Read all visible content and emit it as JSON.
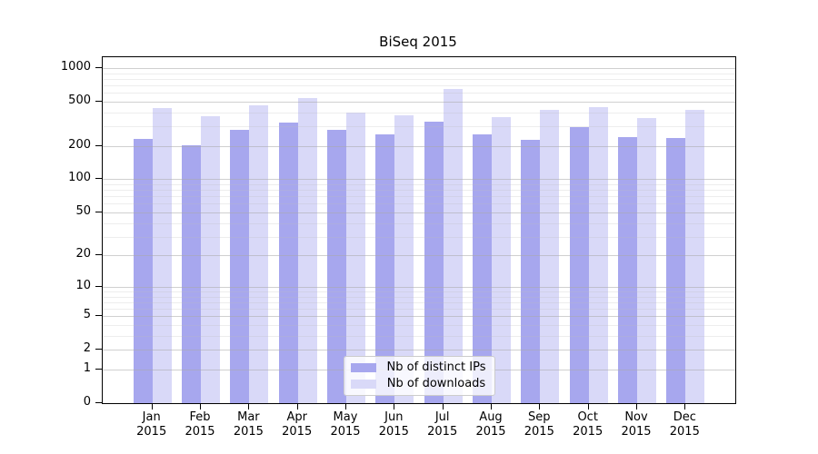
{
  "figure": {
    "title": "BiSeq 2015",
    "background": "#ffffff"
  },
  "chart_data": {
    "type": "bar",
    "title": "BiSeq 2015",
    "categories": [
      "Jan 2015",
      "Feb 2015",
      "Mar 2015",
      "Apr 2015",
      "May 2015",
      "Jun 2015",
      "Jul 2015",
      "Aug 2015",
      "Sep 2015",
      "Oct 2015",
      "Nov 2015",
      "Dec 2015"
    ],
    "series": [
      {
        "name": "Nb of distinct IPs",
        "color": "#a7a7ee",
        "values": [
          231,
          203,
          279,
          324,
          279,
          254,
          331,
          254,
          227,
          296,
          240,
          236
        ]
      },
      {
        "name": "Nb of downloads",
        "color": "#d9d9f8",
        "values": [
          439,
          370,
          464,
          539,
          399,
          377,
          649,
          363,
          422,
          446,
          357,
          422
        ]
      }
    ],
    "xlabel": "",
    "ylabel": "",
    "yscale": "log1p",
    "ylim": [
      0,
      1250
    ],
    "yticks": [
      0,
      1,
      2,
      5,
      10,
      20,
      50,
      100,
      200,
      500,
      1000
    ],
    "grid": true,
    "grid_minor": true,
    "legend_position": "inside-bottom-center"
  }
}
